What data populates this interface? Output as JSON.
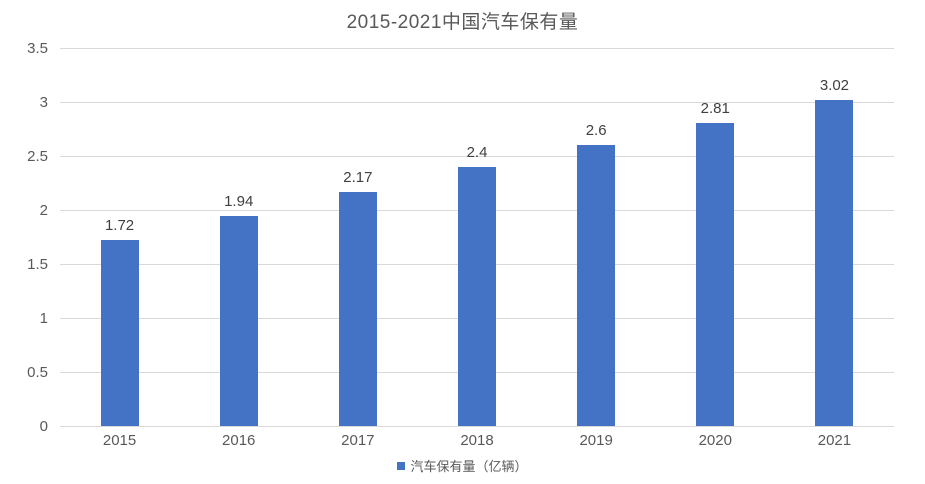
{
  "chart_data": {
    "type": "bar",
    "title": "2015-2021中国汽车保有量",
    "categories": [
      "2015",
      "2016",
      "2017",
      "2018",
      "2019",
      "2020",
      "2021"
    ],
    "series": [
      {
        "name": "汽车保有量（亿辆）",
        "values": [
          1.72,
          1.94,
          2.17,
          2.4,
          2.6,
          2.81,
          3.02
        ],
        "color": "#4472C4"
      }
    ],
    "value_labels": [
      "1.72",
      "1.94",
      "2.17",
      "2.4",
      "2.6",
      "2.81",
      "3.02"
    ],
    "xlabel": "",
    "ylabel": "",
    "ylim": [
      0,
      3.5
    ],
    "ytick_step": 0.5,
    "ytick_labels": [
      "0",
      "0.5",
      "1",
      "1.5",
      "2",
      "2.5",
      "3",
      "3.5"
    ],
    "grid": true,
    "legend_position": "bottom",
    "legend": {
      "label": "汽车保有量（亿辆）",
      "marker_color": "#4472C4"
    },
    "colors": {
      "bar": "#4472C4",
      "gridline": "#D9D9D9",
      "axis_text": "#595959",
      "data_label": "#404040",
      "title_text": "#595959",
      "background": "#FFFFFF"
    }
  }
}
